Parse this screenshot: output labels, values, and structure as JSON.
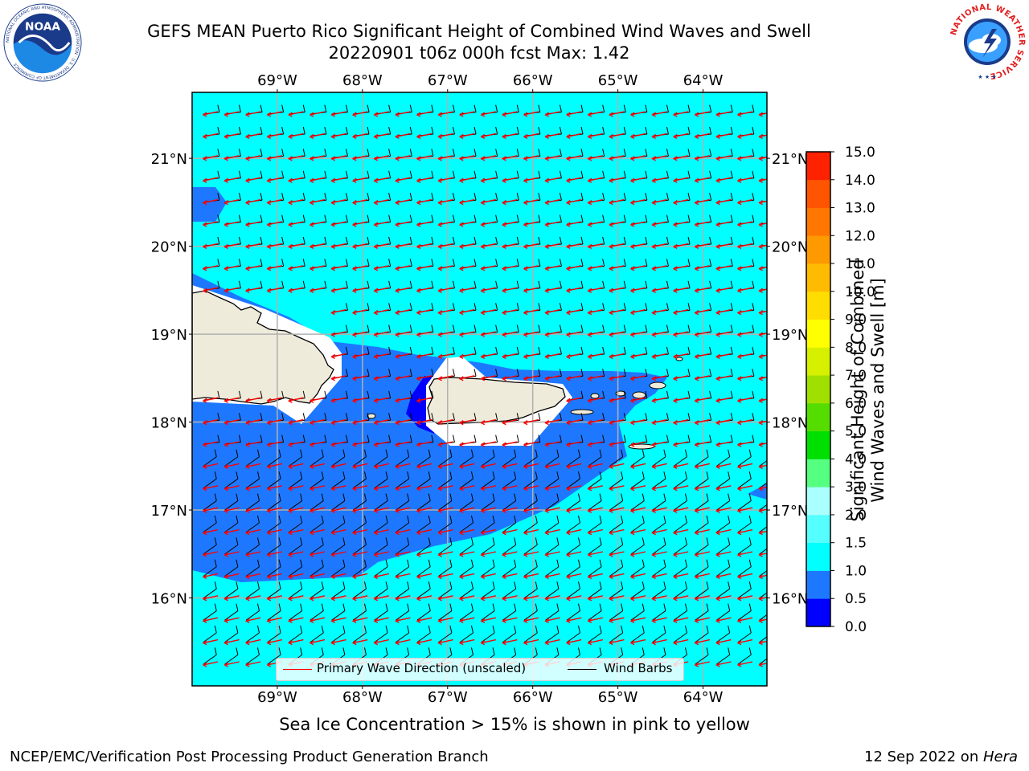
{
  "header": {
    "title_line1": "GEFS MEAN Puerto Rico Significant Height of Combined Wind Waves and Swell",
    "title_line2": "20220901 t06z 000h fcst   Max: 1.42"
  },
  "logos": {
    "noaa_text": "NOAA",
    "noaa_ring_text": "NATIONAL OCEANIC AND ATMOSPHERIC ADMINISTRATION · U.S. DEPARTMENT OF COMMERCE",
    "nws_ring_text": "NATIONAL WEATHER SERVICE"
  },
  "map": {
    "lon_labels": [
      "69°W",
      "68°W",
      "67°W",
      "66°W",
      "65°W",
      "64°W"
    ],
    "lon_values": [
      -69,
      -68,
      -67,
      -66,
      -65,
      -64
    ],
    "lat_labels": [
      "21°N",
      "20°N",
      "19°N",
      "18°N",
      "17°N",
      "16°N"
    ],
    "lat_values": [
      21,
      20,
      19,
      18,
      17,
      16
    ],
    "lon_range": [
      -70,
      -63.25
    ],
    "lat_range": [
      15,
      21.75
    ],
    "colors": {
      "ocean_low": "#00ffff",
      "ocean_mid": "#1e78ff",
      "ocean_dark": "#0000ff",
      "land": "#efebda",
      "no_data": "#ffffff",
      "grid": "#b0b0b0",
      "wave_arrow": "#ff0000",
      "wind_barb": "#000000"
    }
  },
  "legend": {
    "wave_label": "Primary Wave Direction (unscaled)",
    "barb_label": "Wind Barbs"
  },
  "colorbar": {
    "label_line1": "Significant Height of Combined",
    "label_line2": "Wind Waves and Swell [m]",
    "ticks": [
      "0.0",
      "0.5",
      "1.0",
      "1.5",
      "2.0",
      "3.0",
      "4.0",
      "5.0",
      "6.0",
      "7.0",
      "8.0",
      "9.0",
      "10.0",
      "11.0",
      "12.0",
      "13.0",
      "14.0",
      "15.0"
    ],
    "colors": [
      "#0000ff",
      "#1e78ff",
      "#00ffff",
      "#55ffff",
      "#aaffff",
      "#55ff80",
      "#00e000",
      "#55dd00",
      "#a0e000",
      "#d6f000",
      "#ffff00",
      "#ffdd00",
      "#ffbb00",
      "#ff9900",
      "#ff7700",
      "#ff5500",
      "#ff2200"
    ]
  },
  "footer": {
    "sea_ice_note": "Sea Ice Concentration > 15% is shown in pink to yellow",
    "left": "NCEP/EMC/Verification Post Processing Product Generation Branch",
    "right_date": "12 Sep 2022 on ",
    "right_host": "Hera"
  }
}
